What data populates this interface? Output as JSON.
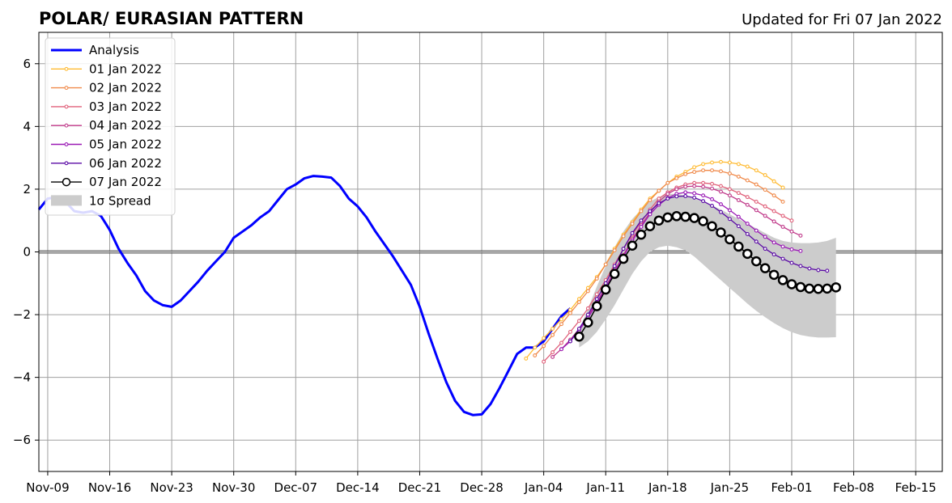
{
  "chart_data": {
    "type": "line",
    "title": "POLAR/ EURASIAN  PATTERN",
    "subtitle": "Updated for Fri 07 Jan 2022",
    "xlabel": "",
    "ylabel": "",
    "x_tick_labels": [
      "Nov-09",
      "Nov-16",
      "Nov-23",
      "Nov-30",
      "Dec-07",
      "Dec-14",
      "Dec-21",
      "Dec-28",
      "Jan-04",
      "Jan-11",
      "Jan-18",
      "Jan-25",
      "Feb-01",
      "Feb-08",
      "Feb-15"
    ],
    "y_ticks": [
      -6,
      -4,
      -2,
      0,
      2,
      4,
      6
    ],
    "y_tick_labels": [
      "−6",
      "−4",
      "−2",
      "0",
      "2",
      "4",
      "6"
    ],
    "ylim": [
      -7,
      7
    ],
    "x_range_days_from_Nov09": [
      -1,
      101
    ],
    "grid": true,
    "legend_position": "top-left",
    "analysis": {
      "name": "Analysis",
      "color": "#0000ff",
      "start_date": "2021-11-08",
      "values": [
        1.35,
        1.7,
        1.75,
        1.6,
        1.3,
        1.25,
        1.3,
        1.15,
        0.7,
        0.1,
        -0.35,
        -0.75,
        -1.25,
        -1.55,
        -1.7,
        -1.75,
        -1.55,
        -1.25,
        -0.95,
        -0.6,
        -0.3,
        0.0,
        0.45,
        0.65,
        0.85,
        1.1,
        1.3,
        1.65,
        2.0,
        2.15,
        2.35,
        2.42,
        2.4,
        2.37,
        2.1,
        1.7,
        1.45,
        1.1,
        0.65,
        0.25,
        -0.15,
        -0.6,
        -1.05,
        -1.75,
        -2.6,
        -3.4,
        -4.15,
        -4.75,
        -5.1,
        -5.2,
        -5.18,
        -4.85,
        -4.35,
        -3.8,
        -3.25,
        -3.05,
        -3.05,
        -2.85,
        -2.45,
        -2.05,
        -1.8
      ]
    },
    "forecasts": [
      {
        "name": "01 Jan 2022",
        "color": "#ffbb33",
        "start_date": "2022-01-02",
        "values": [
          -3.4,
          -3.05,
          -2.75,
          -2.45,
          -2.15,
          -1.85,
          -1.5,
          -1.15,
          -0.8,
          -0.4,
          0.1,
          0.55,
          0.95,
          1.35,
          1.7,
          1.95,
          2.2,
          2.4,
          2.55,
          2.7,
          2.8,
          2.85,
          2.87,
          2.85,
          2.8,
          2.72,
          2.6,
          2.45,
          2.25,
          2.05
        ]
      },
      {
        "name": "02 Jan 2022",
        "color": "#f08a4b",
        "start_date": "2022-01-03",
        "values": [
          -3.3,
          -3.0,
          -2.65,
          -2.3,
          -1.95,
          -1.6,
          -1.25,
          -0.85,
          -0.4,
          0.05,
          0.5,
          0.9,
          1.3,
          1.65,
          1.95,
          2.2,
          2.35,
          2.48,
          2.55,
          2.6,
          2.6,
          2.57,
          2.5,
          2.4,
          2.28,
          2.15,
          1.98,
          1.8,
          1.6
        ]
      },
      {
        "name": "03 Jan 2022",
        "color": "#e0607a",
        "start_date": "2022-01-04",
        "values": [
          -3.5,
          -3.2,
          -2.9,
          -2.55,
          -2.2,
          -1.8,
          -1.35,
          -0.9,
          -0.4,
          0.1,
          0.55,
          0.95,
          1.35,
          1.7,
          1.9,
          2.05,
          2.15,
          2.2,
          2.2,
          2.17,
          2.1,
          2.0,
          1.88,
          1.75,
          1.6,
          1.45,
          1.3,
          1.15,
          1.0
        ]
      },
      {
        "name": "04 Jan 2022",
        "color": "#c03a8a",
        "start_date": "2022-01-05",
        "values": [
          -3.35,
          -3.1,
          -2.8,
          -2.45,
          -2.05,
          -1.6,
          -1.1,
          -0.6,
          -0.1,
          0.4,
          0.85,
          1.25,
          1.6,
          1.85,
          2.0,
          2.08,
          2.1,
          2.08,
          2.02,
          1.92,
          1.8,
          1.65,
          1.5,
          1.33,
          1.15,
          0.97,
          0.8,
          0.65,
          0.52
        ]
      },
      {
        "name": "05 Jan 2022",
        "color": "#9a1ab5",
        "start_date": "2022-01-06",
        "values": [
          -3.1,
          -2.85,
          -2.5,
          -2.1,
          -1.65,
          -1.15,
          -0.65,
          -0.15,
          0.35,
          0.8,
          1.2,
          1.5,
          1.72,
          1.85,
          1.9,
          1.87,
          1.8,
          1.68,
          1.52,
          1.33,
          1.12,
          0.9,
          0.68,
          0.48,
          0.3,
          0.17,
          0.08,
          0.03
        ]
      },
      {
        "name": "06 Jan 2022",
        "color": "#5a0aa5",
        "start_date": "2022-01-07",
        "values": [
          -2.85,
          -2.45,
          -2.0,
          -1.5,
          -1.0,
          -0.45,
          0.1,
          0.6,
          1.0,
          1.3,
          1.55,
          1.7,
          1.77,
          1.78,
          1.73,
          1.62,
          1.47,
          1.27,
          1.05,
          0.82,
          0.57,
          0.33,
          0.1,
          -0.08,
          -0.22,
          -0.35,
          -0.45,
          -0.53,
          -0.58,
          -0.6
        ]
      },
      {
        "name": "07 Jan 2022",
        "color": "#000000",
        "start_date": "2022-01-08",
        "values": [
          -2.7,
          -2.25,
          -1.73,
          -1.2,
          -0.7,
          -0.22,
          0.2,
          0.55,
          0.82,
          1.0,
          1.1,
          1.14,
          1.12,
          1.08,
          0.98,
          0.82,
          0.62,
          0.4,
          0.17,
          -0.06,
          -0.3,
          -0.52,
          -0.73,
          -0.9,
          -1.03,
          -1.12,
          -1.17,
          -1.18,
          -1.17,
          -1.13
        ]
      }
    ],
    "spread": {
      "name": "1σ Spread",
      "color": "#cccccc",
      "start_date": "2022-01-08",
      "upper": [
        -2.5,
        -1.8,
        -1.1,
        -0.45,
        0.15,
        0.65,
        1.05,
        1.35,
        1.6,
        1.75,
        1.85,
        1.85,
        1.8,
        1.7,
        1.6,
        1.48,
        1.35,
        1.2,
        1.05,
        0.9,
        0.75,
        0.6,
        0.45,
        0.35,
        0.3,
        0.28,
        0.28,
        0.3,
        0.35,
        0.45
      ],
      "lower": [
        -3.05,
        -2.85,
        -2.55,
        -2.15,
        -1.7,
        -1.2,
        -0.7,
        -0.3,
        0.0,
        0.15,
        0.2,
        0.15,
        0.05,
        -0.15,
        -0.4,
        -0.65,
        -0.9,
        -1.15,
        -1.4,
        -1.65,
        -1.88,
        -2.08,
        -2.27,
        -2.43,
        -2.56,
        -2.65,
        -2.7,
        -2.73,
        -2.73,
        -2.72
      ]
    },
    "legend": [
      "Analysis",
      "01 Jan 2022",
      "02 Jan 2022",
      "03 Jan 2022",
      "04 Jan 2022",
      "05 Jan 2022",
      "06 Jan 2022",
      "07 Jan 2022",
      "1σ Spread"
    ]
  }
}
